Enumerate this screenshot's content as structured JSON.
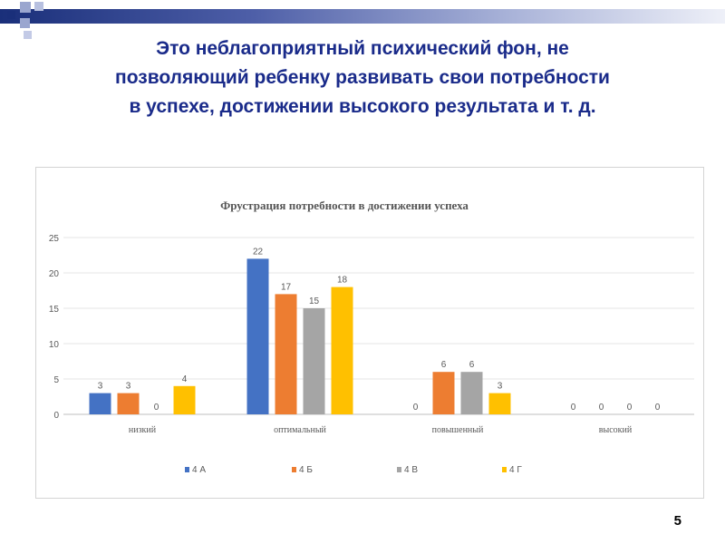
{
  "slide": {
    "title_lines": [
      "Это неблагоприятный психический фон, не",
      "позволяющий ребенку развивать свои потребности",
      "в успехе, достижении высокого результата и т. д."
    ],
    "page_number": "5",
    "accent_colors": {
      "dark_blue": "#1a2f7a",
      "square_light": "#9aa6cf",
      "title_text": "#1a2b8a"
    }
  },
  "chart_data": {
    "type": "bar",
    "title": "Фрустрация потребности в достижении успеха",
    "categories": [
      "низкий",
      "оптимальный",
      "повышенный",
      "высокий"
    ],
    "series": [
      {
        "name": "4 А",
        "color": "#4472c4",
        "values": [
          3,
          22,
          0,
          0
        ]
      },
      {
        "name": "4 Б",
        "color": "#ed7d31",
        "values": [
          3,
          17,
          6,
          0
        ]
      },
      {
        "name": "4 В",
        "color": "#a5a5a5",
        "values": [
          0,
          15,
          6,
          0
        ]
      },
      {
        "name": "4 Г",
        "color": "#ffc000",
        "values": [
          4,
          18,
          3,
          0
        ]
      }
    ],
    "ylim": [
      0,
      25
    ],
    "yticks": [
      0,
      5,
      10,
      15,
      20,
      25
    ],
    "grid": true,
    "legend": "bottom",
    "data_labels": true
  }
}
